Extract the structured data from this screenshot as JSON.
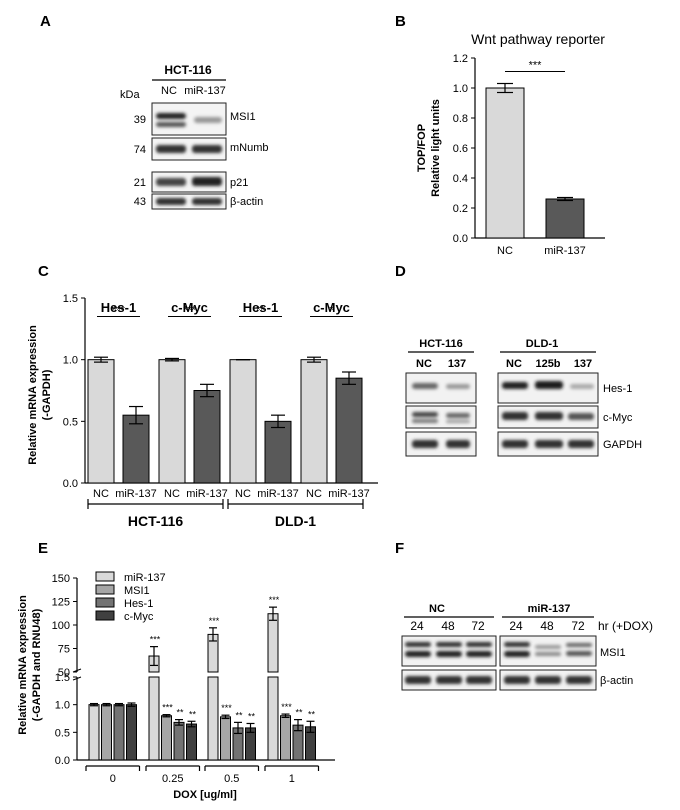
{
  "panels": {
    "A": {
      "letter": "A",
      "cell_line": "HCT-116",
      "kda_label": "kDa",
      "lanes": [
        "NC",
        "miR-137"
      ],
      "bands": [
        {
          "kda": "39",
          "label": "MSI1"
        },
        {
          "kda": "74",
          "label": "mNumb"
        },
        {
          "kda": "21",
          "label": "p21"
        },
        {
          "kda": "43",
          "label": "β-actin"
        }
      ]
    },
    "D": {
      "letter": "D",
      "groups": [
        {
          "name": "HCT-116",
          "lanes": [
            "NC",
            "137"
          ]
        },
        {
          "name": "DLD-1",
          "lanes": [
            "NC",
            "125b",
            "137"
          ]
        }
      ],
      "bands": [
        "Hes-1",
        "c-Myc",
        "GAPDH"
      ]
    },
    "F": {
      "letter": "F",
      "groups": [
        {
          "name": "NC",
          "lanes": [
            "24",
            "48",
            "72"
          ]
        },
        {
          "name": "miR-137",
          "lanes": [
            "24",
            "48",
            "72"
          ]
        }
      ],
      "unit": "hr (+DOX)",
      "bands": [
        "MSI1",
        "β-actin"
      ]
    }
  },
  "chart_data": [
    {
      "panel": "B",
      "type": "bar",
      "title": "Wnt pathway reporter",
      "ylabel": [
        "TOP/FOP",
        "Relative light units"
      ],
      "categories": [
        "NC",
        "miR-137"
      ],
      "values": [
        1.0,
        0.26
      ],
      "errors": [
        0.03,
        0.01
      ],
      "colors": [
        "#d9d9d9",
        "#595959"
      ],
      "ylim": [
        0,
        1.2
      ],
      "yticks": [
        "0.0",
        "0.2",
        "0.4",
        "0.6",
        "0.8",
        "1.0",
        "1.2"
      ],
      "significance": "***"
    },
    {
      "panel": "C",
      "type": "bar",
      "ylabel": [
        "Relative mRNA expression",
        "(-GAPDH)"
      ],
      "ylim": [
        0,
        1.5
      ],
      "yticks": [
        "0.0",
        "0.5",
        "1.0",
        "1.5"
      ],
      "colors": [
        "#d9d9d9",
        "#595959"
      ],
      "genes": [
        {
          "name": "Hes-1",
          "values": [
            1.0,
            0.55
          ],
          "errors": [
            0.02,
            0.07
          ],
          "sig": "***"
        },
        {
          "name": "c-Myc",
          "values": [
            1.0,
            0.75
          ],
          "errors": [
            0.01,
            0.05
          ],
          "sig": "***"
        },
        {
          "name": "Hes-1",
          "values": [
            1.0,
            0.5
          ],
          "errors": [
            0.0,
            0.05
          ],
          "sig": "**"
        },
        {
          "name": "c-Myc",
          "values": [
            1.0,
            0.85
          ],
          "errors": [
            0.02,
            0.05
          ],
          "sig": "*"
        }
      ],
      "categories": [
        "NC",
        "miR-137",
        "NC",
        "miR-137",
        "NC",
        "miR-137",
        "NC",
        "miR-137"
      ],
      "cell_lines": [
        "HCT-116",
        "DLD-1"
      ]
    },
    {
      "panel": "E",
      "type": "bar",
      "ylabel": [
        "Relative mRNA expression",
        "(-GAPDH and RNU48)"
      ],
      "xlabel": "DOX [ug/ml]",
      "categories": [
        "0",
        "0.25",
        "0.5",
        "1"
      ],
      "yticks_upper": [
        "50",
        "75",
        "100",
        "125",
        "150"
      ],
      "yticks_lower": [
        "0.0",
        "0.5",
        "1.0",
        "1.5"
      ],
      "axis_break": true,
      "series": [
        {
          "name": "miR-137",
          "color": "#d9d9d9",
          "values": [
            1.0,
            67,
            90,
            112
          ],
          "errors": [
            0.02,
            10,
            7,
            7
          ],
          "sig": [
            "",
            "***",
            "***",
            "***"
          ]
        },
        {
          "name": "MSI1",
          "color": "#a6a6a6",
          "values": [
            1.0,
            0.8,
            0.78,
            0.8
          ],
          "errors": [
            0.02,
            0.02,
            0.03,
            0.03
          ],
          "sig": [
            "",
            "***",
            "***",
            "***"
          ]
        },
        {
          "name": "Hes-1",
          "color": "#737373",
          "values": [
            1.0,
            0.68,
            0.58,
            0.63
          ],
          "errors": [
            0.02,
            0.05,
            0.1,
            0.1
          ],
          "sig": [
            "",
            "**",
            "**",
            "**"
          ]
        },
        {
          "name": "c-Myc",
          "color": "#404040",
          "values": [
            1.0,
            0.65,
            0.58,
            0.6
          ],
          "errors": [
            0.03,
            0.05,
            0.08,
            0.1
          ],
          "sig": [
            "",
            "**",
            "**",
            "**"
          ]
        }
      ]
    }
  ]
}
